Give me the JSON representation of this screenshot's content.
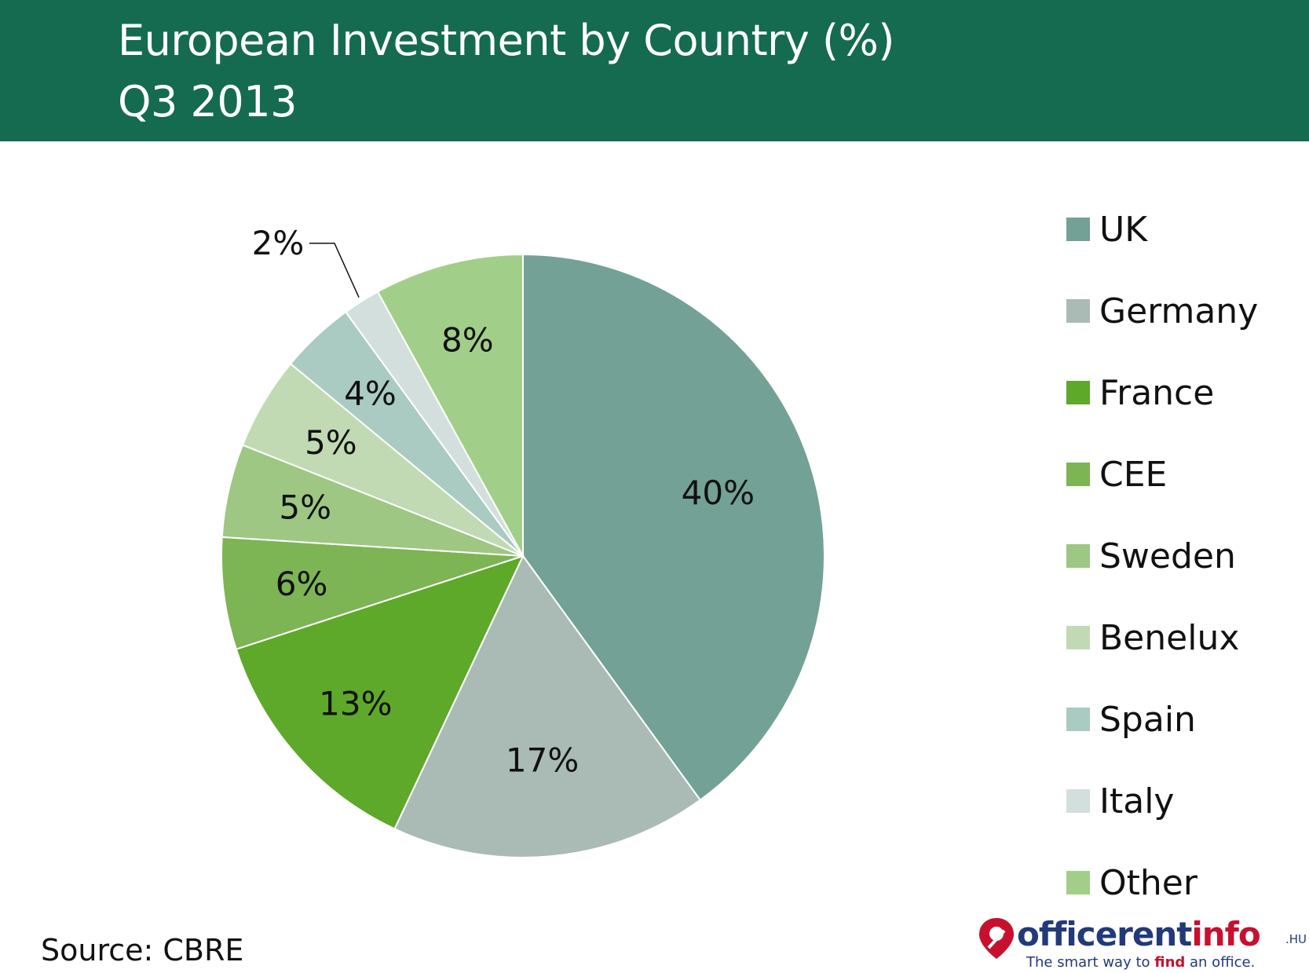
{
  "header": {
    "title_line1": "European Investment by Country (%)",
    "title_line2": "Q3 2013",
    "background_color": "#156b4f"
  },
  "chart_data": {
    "type": "pie",
    "title": "European Investment by Country (%) Q3 2013",
    "unit": "%",
    "categories": [
      "UK",
      "Germany",
      "France",
      "CEE",
      "Sweden",
      "Benelux",
      "Spain",
      "Italy",
      "Other"
    ],
    "values": [
      40,
      17,
      13,
      6,
      5,
      5,
      4,
      2,
      8
    ],
    "data_labels": [
      "40%",
      "17%",
      "13%",
      "6%",
      "5%",
      "5%",
      "4%",
      "2%",
      "8%"
    ],
    "colors": [
      "#74a195",
      "#aabbb5",
      "#5ea82a",
      "#7db454",
      "#9dc783",
      "#c2dab4",
      "#a9cbc1",
      "#d3dfdc",
      "#a1cf89"
    ],
    "start_angle_deg": 0,
    "direction": "clockwise",
    "legend_position": "right"
  },
  "source": "Source: CBRE",
  "logo": {
    "part1": "officerent",
    "part2": "info",
    "tld": ".HU",
    "tagline_before": "The smart way to ",
    "tagline_emphasis": "find",
    "tagline_after": " an office."
  }
}
